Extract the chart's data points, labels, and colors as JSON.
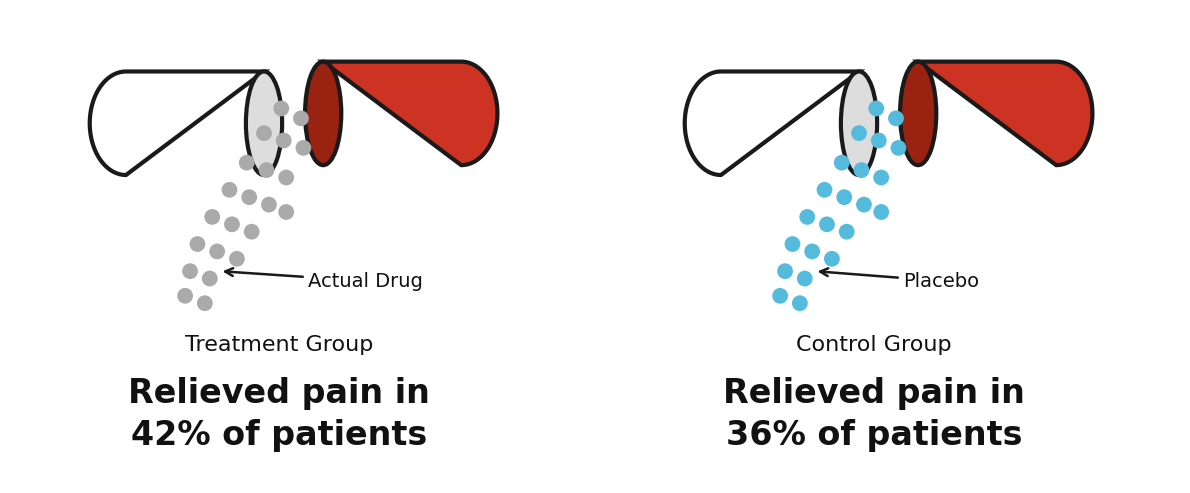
{
  "bg_color": "#ffffff",
  "capsule_red": "#cc3322",
  "capsule_dark_red": "#992211",
  "capsule_white": "#ffffff",
  "capsule_outline": "#1a1a1a",
  "dots_left": "#aaaaaa",
  "dots_right": "#55bbdd",
  "label_left": "Actual Drug",
  "label_right": "Placebo",
  "group_left": "Treatment Group",
  "group_right": "Control Group",
  "stat_left": "Relieved pain in\n42% of patients",
  "stat_right": "Relieved pain in\n36% of patients",
  "arrow_color": "#1a1a1a",
  "text_color": "#111111",
  "group_fontsize": 16,
  "stat_fontsize": 24,
  "label_fontsize": 14,
  "lw": 3.0
}
